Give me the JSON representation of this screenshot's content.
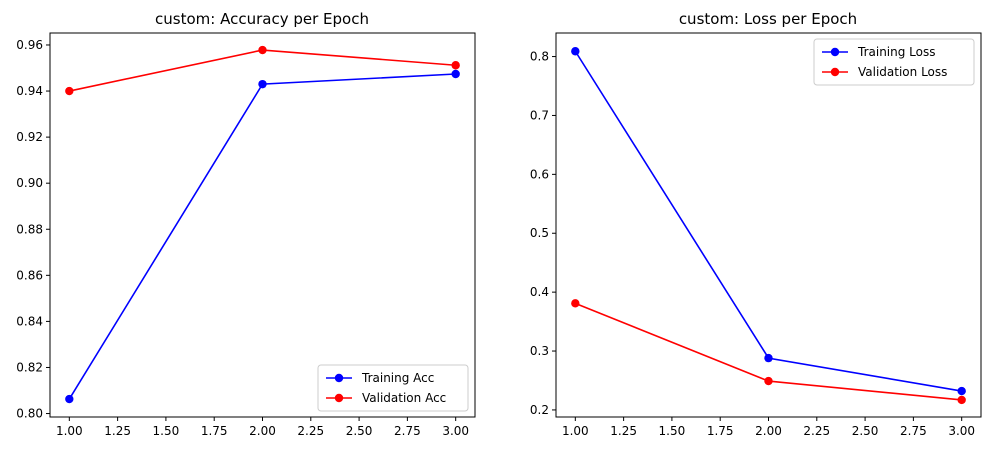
{
  "chart_data": [
    {
      "type": "line",
      "title": "custom: Accuracy per Epoch",
      "xlabel": "",
      "ylabel": "",
      "x": [
        1.0,
        2.0,
        3.0
      ],
      "xlim": [
        0.9,
        3.1
      ],
      "ylim": [
        0.7985,
        0.9652
      ],
      "xticks": [
        1.0,
        1.25,
        1.5,
        1.75,
        2.0,
        2.25,
        2.5,
        2.75,
        3.0
      ],
      "xtick_labels": [
        "1.00",
        "1.25",
        "1.50",
        "1.75",
        "2.00",
        "2.25",
        "2.50",
        "2.75",
        "3.00"
      ],
      "yticks": [
        0.8,
        0.82,
        0.84,
        0.86,
        0.88,
        0.9,
        0.92,
        0.94,
        0.96
      ],
      "ytick_labels": [
        "0.80",
        "0.82",
        "0.84",
        "0.86",
        "0.88",
        "0.90",
        "0.92",
        "0.94",
        "0.96"
      ],
      "grid": false,
      "legend_position": "lower-right",
      "series": [
        {
          "name": "Training Acc",
          "color": "#0000ff",
          "marker": "circle",
          "values": [
            0.8063,
            0.943,
            0.9474
          ]
        },
        {
          "name": "Validation Acc",
          "color": "#ff0000",
          "marker": "circle",
          "values": [
            0.94,
            0.9578,
            0.9512
          ]
        }
      ]
    },
    {
      "type": "line",
      "title": "custom: Loss per Epoch",
      "xlabel": "",
      "ylabel": "",
      "x": [
        1.0,
        2.0,
        3.0
      ],
      "xlim": [
        0.9,
        3.1
      ],
      "ylim": [
        0.188,
        0.84
      ],
      "xticks": [
        1.0,
        1.25,
        1.5,
        1.75,
        2.0,
        2.25,
        2.5,
        2.75,
        3.0
      ],
      "xtick_labels": [
        "1.00",
        "1.25",
        "1.50",
        "1.75",
        "2.00",
        "2.25",
        "2.50",
        "2.75",
        "3.00"
      ],
      "yticks": [
        0.2,
        0.3,
        0.4,
        0.5,
        0.6,
        0.7,
        0.8
      ],
      "ytick_labels": [
        "0.2",
        "0.3",
        "0.4",
        "0.5",
        "0.6",
        "0.7",
        "0.8"
      ],
      "grid": false,
      "legend_position": "upper-right",
      "series": [
        {
          "name": "Training Loss",
          "color": "#0000ff",
          "marker": "circle",
          "values": [
            0.809,
            0.288,
            0.232
          ]
        },
        {
          "name": "Validation Loss",
          "color": "#ff0000",
          "marker": "circle",
          "values": [
            0.381,
            0.249,
            0.217
          ]
        }
      ]
    }
  ]
}
